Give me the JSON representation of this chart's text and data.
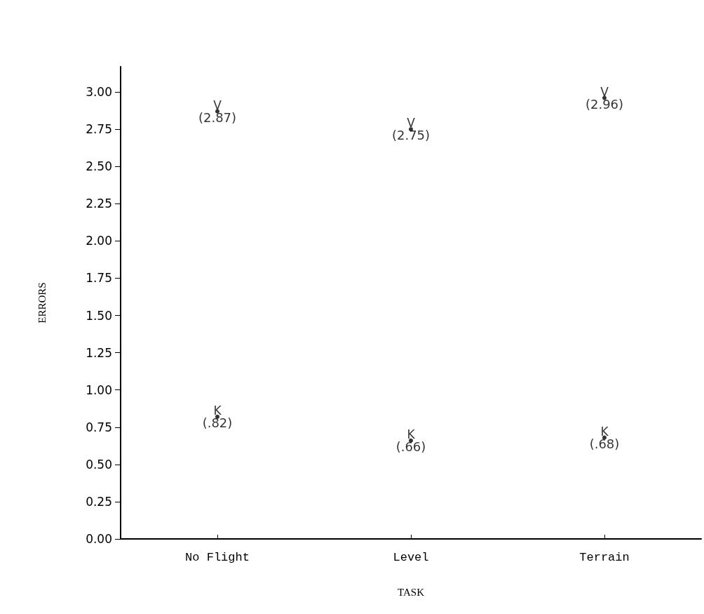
{
  "chart_data": {
    "type": "scatter",
    "xlabel": "TASK",
    "ylabel": "ERRORS",
    "categories": [
      "No Flight",
      "Level",
      "Terrain"
    ],
    "series": [
      {
        "name": "V",
        "color": "#000000",
        "values": [
          2.87,
          2.75,
          2.96
        ],
        "value_labels": [
          "(2.87)",
          "(2.75)",
          "(2.96)"
        ]
      },
      {
        "name": "K",
        "color": "#000000",
        "values": [
          0.82,
          0.66,
          0.68
        ],
        "value_labels": [
          "(.82)",
          "(.66)",
          "(.68)"
        ]
      }
    ],
    "ylim": [
      0,
      3.17
    ],
    "yticks": [
      {
        "value": 0,
        "label": "0.00"
      },
      0.25,
      {
        "value": 0.5,
        "label": "0.50"
      },
      0.75,
      {
        "value": 1,
        "label": "1.00"
      },
      1.25,
      {
        "value": 1.5,
        "label": "1.50"
      },
      1.75,
      {
        "value": 2,
        "label": "2.00"
      },
      2.25,
      {
        "value": 2.5,
        "label": "2.50"
      },
      2.75,
      {
        "value": 3,
        "label": "3.00"
      }
    ],
    "marker": "circle",
    "grid": false,
    "legend": false
  }
}
